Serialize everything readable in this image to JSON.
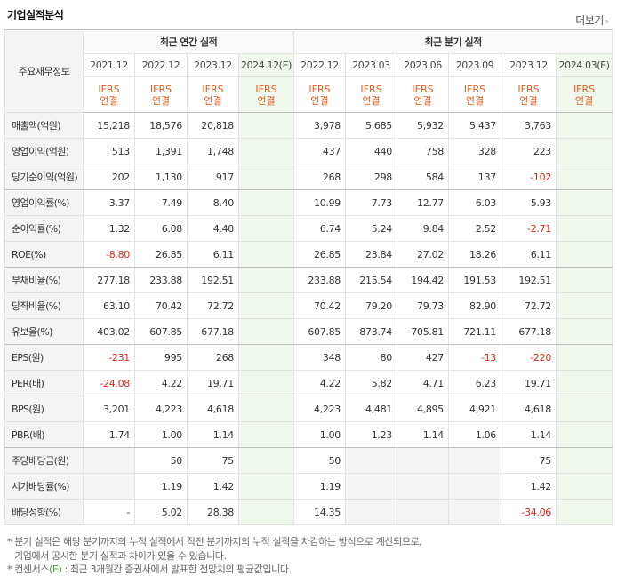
{
  "header": {
    "title": "기업실적분석",
    "more_label": "더보기"
  },
  "table": {
    "corner_label": "주요재무정보",
    "annual_group": "최근 연간 실적",
    "quarter_group": "최근 분기 실적",
    "annual_periods": [
      "2021.12",
      "2022.12",
      "2023.12",
      "2024.12(E)"
    ],
    "quarter_periods": [
      "2022.12",
      "2023.03",
      "2023.06",
      "2023.09",
      "2023.12",
      "2024.03(E)"
    ],
    "basis_line1": "IFRS",
    "basis_line2": "연결",
    "rows": [
      {
        "label": "매출액(억원)",
        "values": [
          "15,218",
          "18,576",
          "20,818",
          "",
          "3,978",
          "5,685",
          "5,932",
          "5,437",
          "3,763",
          ""
        ]
      },
      {
        "label": "영업이익(억원)",
        "values": [
          "513",
          "1,391",
          "1,748",
          "",
          "437",
          "440",
          "758",
          "328",
          "223",
          ""
        ]
      },
      {
        "label": "당기순이익(억원)",
        "values": [
          "202",
          "1,130",
          "917",
          "",
          "268",
          "298",
          "584",
          "137",
          "-102",
          ""
        ]
      },
      {
        "label": "영업이익률(%)",
        "values": [
          "3.37",
          "7.49",
          "8.40",
          "",
          "10.99",
          "7.73",
          "12.77",
          "6.03",
          "5.93",
          ""
        ]
      },
      {
        "label": "순이익률(%)",
        "values": [
          "1.32",
          "6.08",
          "4.40",
          "",
          "6.74",
          "5.24",
          "9.84",
          "2.52",
          "-2.71",
          ""
        ]
      },
      {
        "label": "ROE(%)",
        "values": [
          "-8.80",
          "26.85",
          "6.11",
          "",
          "26.85",
          "23.84",
          "27.02",
          "18.26",
          "6.11",
          ""
        ]
      },
      {
        "label": "부채비율(%)",
        "values": [
          "277.18",
          "233.88",
          "192.51",
          "",
          "233.88",
          "215.54",
          "194.42",
          "191.53",
          "192.51",
          ""
        ]
      },
      {
        "label": "당좌비율(%)",
        "values": [
          "63.10",
          "70.42",
          "72.72",
          "",
          "70.42",
          "79.20",
          "79.73",
          "82.90",
          "72.72",
          ""
        ]
      },
      {
        "label": "유보율(%)",
        "values": [
          "403.02",
          "607.85",
          "677.18",
          "",
          "607.85",
          "873.74",
          "705.81",
          "721.11",
          "677.18",
          ""
        ]
      },
      {
        "label": "EPS(원)",
        "values": [
          "-231",
          "995",
          "268",
          "",
          "348",
          "80",
          "427",
          "-13",
          "-220",
          ""
        ]
      },
      {
        "label": "PER(배)",
        "values": [
          "-24.08",
          "4.22",
          "19.71",
          "",
          "4.22",
          "5.82",
          "4.71",
          "6.23",
          "19.71",
          ""
        ]
      },
      {
        "label": "BPS(원)",
        "values": [
          "3,201",
          "4,223",
          "4,618",
          "",
          "4,223",
          "4,481",
          "4,895",
          "4,921",
          "4,618",
          ""
        ]
      },
      {
        "label": "PBR(배)",
        "values": [
          "1.74",
          "1.00",
          "1.14",
          "",
          "1.00",
          "1.23",
          "1.14",
          "1.06",
          "1.14",
          ""
        ]
      },
      {
        "label": "주당배당금(원)",
        "values": [
          "",
          "50",
          "75",
          "",
          "50",
          "",
          "",
          "",
          "75",
          ""
        ]
      },
      {
        "label": "시가배당률(%)",
        "values": [
          "",
          "1.19",
          "1.42",
          "",
          "1.19",
          "",
          "",
          "",
          "1.42",
          ""
        ]
      },
      {
        "label": "배당성향(%)",
        "values": [
          "-",
          "5.02",
          "28.38",
          "",
          "14.35",
          "",
          "",
          "",
          "-34.06",
          ""
        ]
      }
    ]
  },
  "footnotes": [
    "* 분기 실적은 해당 분기까지의 누적 실적에서 직전 분기까지의 누적 실적을 차감하는 방식으로 계산되므로,",
    "기업에서 공시한 분기 실적과 차이가 있을 수 있습니다.",
    "* 컨센서스(E) : 최근 3개월간 증권사에서 발표한 전망치의 평균값입니다."
  ]
}
